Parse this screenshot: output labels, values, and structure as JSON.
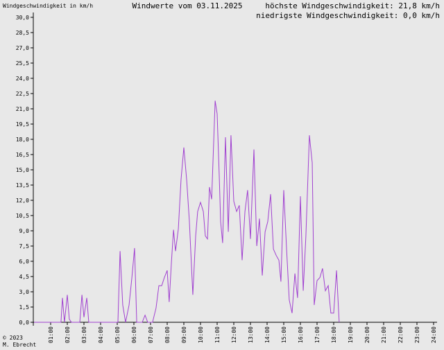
{
  "chart_data": {
    "type": "line",
    "title": "Windwerte vom 03.11.2025",
    "y_label": "Windgeschwindigkeit in km/h",
    "annotations": [
      "höchste Windgeschwindigkeit: 21,8 km/h",
      "niedrigste Windgeschwindigkeit: 0,0 km/h"
    ],
    "footer": [
      "© 2023",
      "M. Ebrecht"
    ],
    "grid": false,
    "xlim": [
      0,
      24
    ],
    "ylim": [
      0,
      30
    ],
    "xticks": [
      {
        "value": 1,
        "label": "01:00"
      },
      {
        "value": 2,
        "label": "02:00"
      },
      {
        "value": 3,
        "label": "03:00"
      },
      {
        "value": 4,
        "label": "04:00"
      },
      {
        "value": 5,
        "label": "05:00"
      },
      {
        "value": 6,
        "label": "06:00"
      },
      {
        "value": 7,
        "label": "07:00"
      },
      {
        "value": 8,
        "label": "08:00"
      },
      {
        "value": 9,
        "label": "09:00"
      },
      {
        "value": 10,
        "label": "10:00"
      },
      {
        "value": 11,
        "label": "11:00"
      },
      {
        "value": 12,
        "label": "12:00"
      },
      {
        "value": 13,
        "label": "13:00"
      },
      {
        "value": 14,
        "label": "14:00"
      },
      {
        "value": 15,
        "label": "15:00"
      },
      {
        "value": 16,
        "label": "16:00"
      },
      {
        "value": 17,
        "label": "17:00"
      },
      {
        "value": 18,
        "label": "18:00"
      },
      {
        "value": 19,
        "label": "19:00"
      },
      {
        "value": 20,
        "label": "20:00"
      },
      {
        "value": 21,
        "label": "21:00"
      },
      {
        "value": 22,
        "label": "22:00"
      },
      {
        "value": 23,
        "label": "23:00"
      },
      {
        "value": 24,
        "label": "24:00"
      }
    ],
    "yticks": [
      {
        "value": 0,
        "label": "0,0"
      },
      {
        "value": 1.5,
        "label": "1,5"
      },
      {
        "value": 3,
        "label": "3,0"
      },
      {
        "value": 4.5,
        "label": "4,5"
      },
      {
        "value": 6,
        "label": "6,0"
      },
      {
        "value": 7.5,
        "label": "7,5"
      },
      {
        "value": 9,
        "label": "9,0"
      },
      {
        "value": 10.5,
        "label": "10,5"
      },
      {
        "value": 12,
        "label": "12,0"
      },
      {
        "value": 13.5,
        "label": "13,5"
      },
      {
        "value": 15,
        "label": "15,0"
      },
      {
        "value": 16.5,
        "label": "16,5"
      },
      {
        "value": 18,
        "label": "18,0"
      },
      {
        "value": 19.5,
        "label": "19,5"
      },
      {
        "value": 21,
        "label": "21,0"
      },
      {
        "value": 22.5,
        "label": "22,5"
      },
      {
        "value": 24,
        "label": "24,0"
      },
      {
        "value": 25.5,
        "label": "25,5"
      },
      {
        "value": 27,
        "label": "27,0"
      },
      {
        "value": 28.5,
        "label": "28,5"
      },
      {
        "value": 30,
        "label": "30,0"
      }
    ],
    "series": [
      {
        "color": "#a040d0",
        "x": [
          0,
          1.62,
          1.71,
          1.83,
          2.0,
          2.12,
          2.25,
          2.75,
          2.88,
          3.0,
          3.17,
          3.29,
          5.04,
          5.17,
          5.33,
          5.5,
          5.71,
          5.88,
          6.04,
          6.17,
          6.5,
          6.67,
          6.83,
          7.12,
          7.33,
          7.5,
          7.67,
          7.83,
          8.0,
          8.12,
          8.25,
          8.38,
          8.5,
          8.67,
          8.83,
          9.0,
          9.17,
          9.33,
          9.54,
          9.71,
          9.83,
          10.0,
          10.17,
          10.29,
          10.42,
          10.54,
          10.67,
          10.88,
          11.0,
          11.12,
          11.21,
          11.33,
          11.5,
          11.67,
          11.83,
          12.0,
          12.17,
          12.33,
          12.5,
          12.67,
          12.83,
          13.0,
          13.21,
          13.38,
          13.54,
          13.71,
          13.88,
          14.04,
          14.21,
          14.38,
          14.54,
          14.71,
          14.83,
          15.0,
          15.17,
          15.33,
          15.5,
          15.67,
          15.83,
          16.0,
          16.17,
          16.33,
          16.54,
          16.71,
          16.83,
          17.0,
          17.17,
          17.33,
          17.5,
          17.67,
          17.83,
          18.0,
          18.17,
          18.33
        ],
        "values": [
          0,
          0,
          2.4,
          0,
          2.7,
          0.3,
          0,
          0,
          2.7,
          0.5,
          2.4,
          0,
          0,
          7.0,
          1.7,
          0,
          1.7,
          4.4,
          7.3,
          0,
          0,
          0.7,
          0,
          0,
          1.4,
          3.6,
          3.6,
          4.4,
          5.1,
          2.0,
          5.8,
          9.1,
          7.0,
          9.2,
          14.0,
          17.2,
          14.0,
          10.0,
          2.7,
          8.5,
          10.9,
          11.8,
          10.9,
          8.5,
          8.2,
          13.3,
          12.1,
          21.8,
          20.5,
          14.7,
          9.9,
          7.8,
          18.2,
          8.9,
          18.4,
          11.9,
          10.9,
          11.5,
          6.1,
          10.9,
          13.0,
          8.2,
          17.0,
          7.5,
          10.2,
          4.6,
          8.9,
          9.9,
          12.6,
          7.2,
          6.6,
          6.1,
          4.0,
          13.0,
          7.2,
          2.2,
          0.9,
          4.8,
          2.4,
          12.4,
          3.1,
          8.5,
          18.4,
          15.7,
          1.7,
          4.1,
          4.4,
          5.3,
          3.1,
          3.6,
          0.9,
          0.9,
          5.1,
          0
        ]
      }
    ]
  }
}
